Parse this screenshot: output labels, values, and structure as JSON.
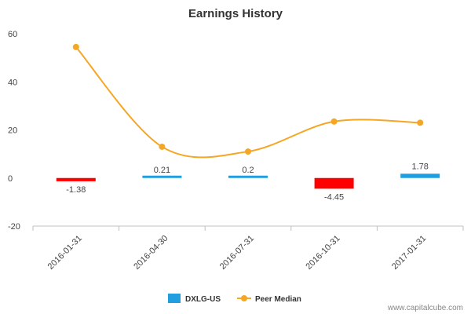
{
  "chart_data": {
    "type": "bar",
    "title": "Earnings History",
    "xlabel": "",
    "ylabel": "",
    "categories": [
      "2016-01-31",
      "2016-04-30",
      "2016-07-31",
      "2016-10-31",
      "2017-01-31"
    ],
    "ylim": [
      -20,
      60
    ],
    "yticks": [
      -20,
      0,
      20,
      40,
      60
    ],
    "grid": false,
    "legend_position": "bottom",
    "series": [
      {
        "name": "DXLG-US",
        "kind": "bar",
        "color": "#1f9fe0",
        "negative_color": "#ff0000",
        "values": [
          -1.38,
          0.21,
          0.2,
          -4.45,
          1.78
        ],
        "labels": [
          "-1.38",
          "0.21",
          "0.2",
          "-4.45",
          "1.78"
        ]
      },
      {
        "name": "Peer Median",
        "kind": "line",
        "color": "#f5a623",
        "smooth": true,
        "values": [
          54.5,
          13.0,
          11.0,
          23.5,
          23.0
        ]
      }
    ]
  },
  "credit": "www.capitalcube.com"
}
